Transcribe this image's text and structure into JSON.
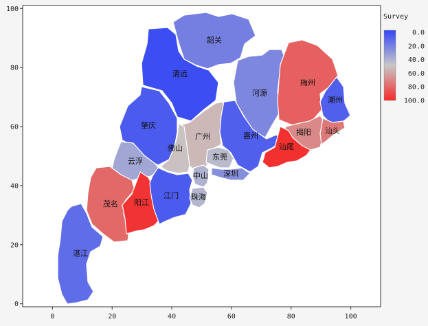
{
  "chart_data": {
    "type": "heatmap",
    "subtype": "choropleth-map",
    "x_ticks": [
      "0",
      "20",
      "40",
      "60",
      "80",
      "100"
    ],
    "y_ticks": [
      "0",
      "20",
      "40",
      "60",
      "80",
      "100"
    ],
    "xlim": [
      -10,
      110
    ],
    "ylim": [
      -1,
      101
    ],
    "legend": {
      "title": "Survey",
      "ticks": [
        "0.0",
        "20.0",
        "40.0",
        "60.0",
        "80.0",
        "100.0"
      ],
      "range": [
        0,
        100
      ],
      "colors": [
        "#3346f5",
        "#c8c8c8",
        "#f52a2a"
      ],
      "placement": "right"
    },
    "regions": [
      {
        "name": "韶关",
        "value": 22
      },
      {
        "name": "清远",
        "value": 3
      },
      {
        "name": "河源",
        "value": 25
      },
      {
        "name": "梅州",
        "value": 83
      },
      {
        "name": "潮州",
        "value": 10
      },
      {
        "name": "肇庆",
        "value": 8
      },
      {
        "name": "广州",
        "value": 55
      },
      {
        "name": "惠州",
        "value": 10
      },
      {
        "name": "揭阳",
        "value": 70
      },
      {
        "name": "汕头",
        "value": 75
      },
      {
        "name": "佛山",
        "value": 52
      },
      {
        "name": "云浮",
        "value": 37
      },
      {
        "name": "东莞",
        "value": 45
      },
      {
        "name": "汕尾",
        "value": 98
      },
      {
        "name": "中山",
        "value": 42
      },
      {
        "name": "深圳",
        "value": 28
      },
      {
        "name": "茂名",
        "value": 80
      },
      {
        "name": "阳江",
        "value": 97
      },
      {
        "name": "江门",
        "value": 8
      },
      {
        "name": "珠海",
        "value": 43
      },
      {
        "name": "湛江",
        "value": 15
      }
    ]
  }
}
